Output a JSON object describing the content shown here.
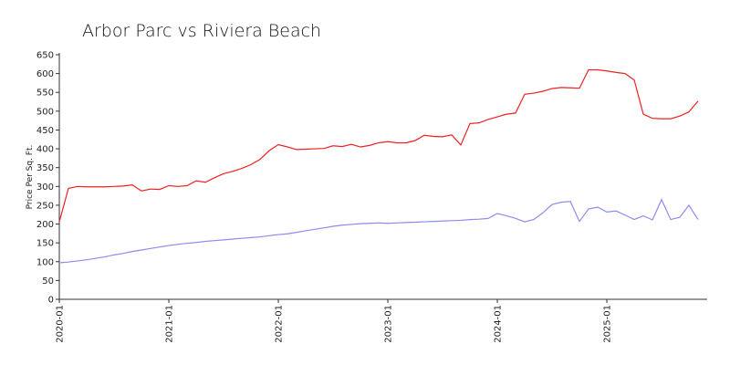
{
  "chart_data": {
    "type": "line",
    "title": "Arbor Parc vs Riviera Beach",
    "ylabel": "Price Per Sq. Ft.",
    "x": [
      "2020-01",
      "2020-02",
      "2020-03",
      "2020-04",
      "2020-05",
      "2020-06",
      "2020-07",
      "2020-08",
      "2020-09",
      "2020-10",
      "2020-11",
      "2020-12",
      "2021-01",
      "2021-02",
      "2021-03",
      "2021-04",
      "2021-05",
      "2021-06",
      "2021-07",
      "2021-08",
      "2021-09",
      "2021-10",
      "2021-11",
      "2021-12",
      "2022-01",
      "2022-02",
      "2022-03",
      "2022-04",
      "2022-05",
      "2022-06",
      "2022-07",
      "2022-08",
      "2022-09",
      "2022-10",
      "2022-11",
      "2022-12",
      "2023-01",
      "2023-02",
      "2023-03",
      "2023-04",
      "2023-05",
      "2023-06",
      "2023-07",
      "2023-08",
      "2023-09",
      "2023-10",
      "2023-11",
      "2023-12",
      "2024-01",
      "2024-02",
      "2024-03",
      "2024-04",
      "2024-05",
      "2024-06",
      "2024-07",
      "2024-08",
      "2024-09",
      "2024-10",
      "2024-11",
      "2024-12",
      "2025-01",
      "2025-02",
      "2025-03",
      "2025-04",
      "2025-05",
      "2025-06",
      "2025-07",
      "2025-08",
      "2025-09",
      "2025-10",
      "2025-11"
    ],
    "series": [
      {
        "color": "#ee2222",
        "values": [
          206,
          295,
          300,
          299,
          299,
          299,
          300,
          301,
          304,
          288,
          293,
          292,
          302,
          300,
          302,
          315,
          311,
          323,
          334,
          340,
          348,
          358,
          372,
          395,
          411,
          405,
          398,
          399,
          400,
          401,
          408,
          406,
          412,
          405,
          409,
          416,
          419,
          416,
          416,
          422,
          436,
          433,
          432,
          437,
          410,
          467,
          469,
          478,
          485,
          492,
          495,
          545,
          548,
          553,
          560,
          563,
          562,
          561,
          610,
          610,
          607,
          603,
          600,
          583,
          492,
          481,
          480,
          480,
          487,
          498,
          527
        ]
      },
      {
        "color": "#8c8cf0",
        "values": [
          97,
          99,
          102,
          105,
          109,
          113,
          118,
          122,
          127,
          131,
          135,
          139,
          143,
          146,
          149,
          151,
          154,
          156,
          158,
          160,
          162,
          164,
          166,
          169,
          172,
          174,
          178,
          182,
          186,
          190,
          194,
          197,
          199,
          201,
          202,
          203,
          202,
          203,
          204,
          205,
          206,
          207,
          208,
          209,
          210,
          212,
          213,
          215,
          228,
          222,
          215,
          206,
          212,
          230,
          252,
          258,
          260,
          207,
          240,
          245,
          232,
          235,
          224,
          212,
          222,
          211,
          265,
          212,
          218,
          250,
          212
        ]
      }
    ],
    "ylim": [
      0,
      650
    ],
    "yticks": [
      0,
      50,
      100,
      150,
      200,
      250,
      300,
      350,
      400,
      450,
      500,
      550,
      600,
      650
    ],
    "xticks": [
      "2020-01",
      "2021-01",
      "2022-01",
      "2023-01",
      "2024-01",
      "2025-01"
    ]
  }
}
